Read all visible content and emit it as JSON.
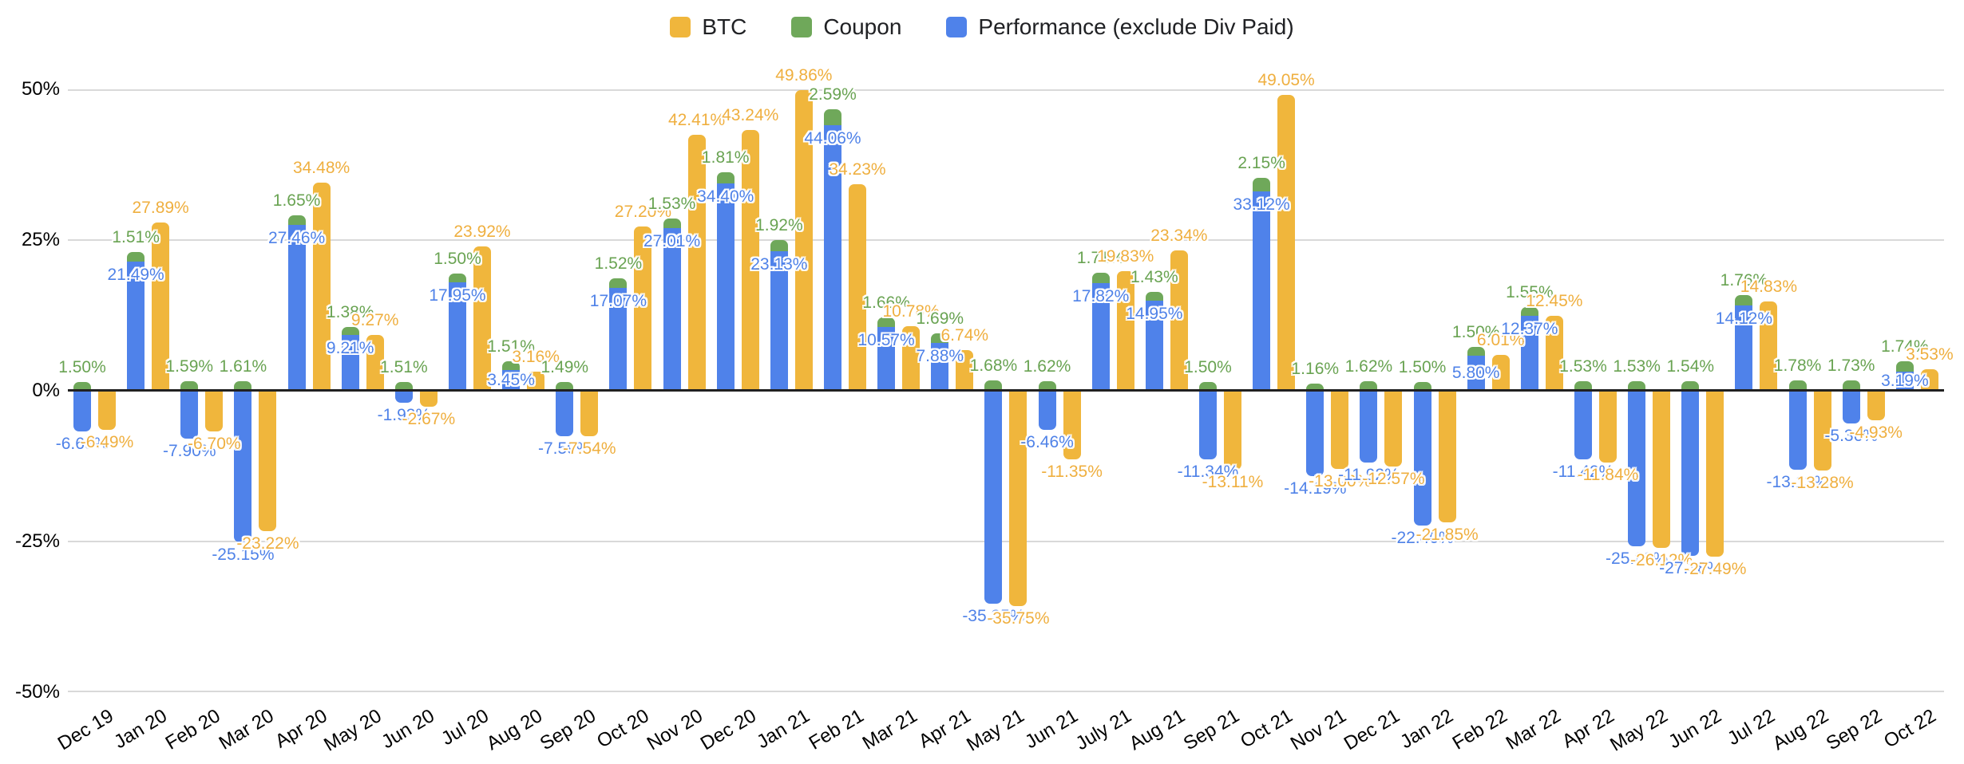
{
  "chart_data": {
    "type": "bar",
    "title": "",
    "subtitle": "",
    "xlabel": "",
    "ylabel": "",
    "ylim": [
      -50,
      50
    ],
    "yticks": [
      "50%",
      "25%",
      "0%",
      "-25%",
      "-50%"
    ],
    "grid": true,
    "legend_position": "top",
    "structure_note": "Coupon (green) is stacked on top of the positive end of Performance (blue); BTC (yellow) is a separate adjacent bar",
    "categories": [
      "Dec 19",
      "Jan 20",
      "Feb 20",
      "Mar 20",
      "Apr 20",
      "May 20",
      "Jun 20",
      "Jul 20",
      "Aug 20",
      "Sep 20",
      "Oct 20",
      "Nov 20",
      "Dec 20",
      "Jan 21",
      "Feb 21",
      "Mar 21",
      "Apr 21",
      "May 21",
      "Jun 21",
      "July 21",
      "Aug 21",
      "Sep 21",
      "Oct 21",
      "Nov 21",
      "Dec 21",
      "Jan 22",
      "Feb 22",
      "Mar 22",
      "Apr 22",
      "May 22",
      "Jun 22",
      "Jul 22",
      "Aug 22",
      "Sep 22",
      "Oct 22"
    ],
    "series": [
      {
        "name": "BTC",
        "color": "#F0B63C",
        "values": [
          -6.49,
          27.89,
          -6.7,
          -23.22,
          34.48,
          9.27,
          -2.67,
          23.92,
          3.16,
          -7.54,
          27.2,
          42.41,
          43.24,
          49.86,
          34.23,
          10.78,
          6.74,
          -35.75,
          -11.35,
          19.83,
          23.34,
          -13.11,
          49.05,
          -13.0,
          -12.57,
          -21.85,
          6.01,
          12.45,
          -11.84,
          -26.12,
          -27.49,
          14.83,
          -13.28,
          -4.93,
          3.53
        ]
      },
      {
        "name": "Coupon",
        "color": "#6FA85A",
        "values": [
          1.5,
          1.51,
          1.59,
          1.61,
          1.65,
          1.38,
          1.51,
          1.5,
          1.51,
          1.49,
          1.52,
          1.53,
          1.81,
          1.92,
          2.59,
          1.66,
          1.69,
          1.68,
          1.62,
          1.71,
          1.43,
          1.5,
          2.15,
          1.16,
          1.62,
          1.5,
          1.5,
          1.55,
          1.53,
          1.53,
          1.54,
          1.76,
          1.78,
          1.73,
          1.74
        ]
      },
      {
        "name": "Performance (exclude Div Paid)",
        "color": "#4F82EA",
        "values": [
          -6.69,
          21.49,
          -7.9,
          -25.15,
          27.46,
          9.21,
          -1.93,
          17.95,
          3.45,
          -7.59,
          17.07,
          27.01,
          34.4,
          23.13,
          44.06,
          10.57,
          7.88,
          -35.35,
          -6.46,
          17.82,
          14.95,
          -11.34,
          33.12,
          -14.19,
          -11.92,
          -22.4,
          5.8,
          12.37,
          -11.42,
          -25.83,
          -27.38,
          14.12,
          -13.13,
          -5.36,
          3.19
        ]
      }
    ],
    "label_colors": {
      "btc": "#EFAF3F",
      "coupon": "#69A352",
      "performance": "#4F82E8"
    },
    "gridline_color": "#d9d9d9",
    "zero_axis_color": "#212121"
  }
}
